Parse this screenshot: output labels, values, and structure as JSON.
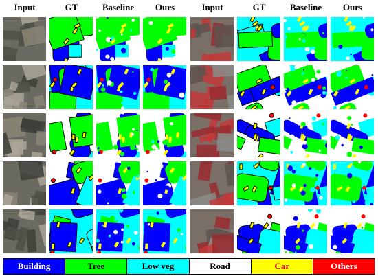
{
  "headers": [
    "Input",
    "GT",
    "Baseline",
    "Ours",
    "Input",
    "GT",
    "Baseline",
    "Ours"
  ],
  "legend": [
    {
      "label": "Building",
      "color": "#0000ff"
    },
    {
      "label": "Tree",
      "color": "#00ff00"
    },
    {
      "label": "Low veg",
      "color": "#00ffff"
    },
    {
      "label": "Road",
      "color": "#ffffff"
    },
    {
      "label": "Car",
      "color": "#ffff00"
    },
    {
      "label": "Others",
      "color": "#ff0000"
    }
  ]
}
